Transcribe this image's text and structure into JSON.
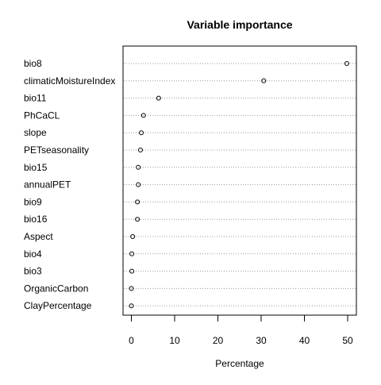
{
  "chart_data": {
    "type": "scatter",
    "title": "Variable importance",
    "xlabel": "Percentage",
    "ylabel": "",
    "xlim": [
      -2,
      52
    ],
    "xticks": [
      0,
      10,
      20,
      30,
      40,
      50
    ],
    "tick_labels": [
      "0",
      "10",
      "20",
      "30",
      "40",
      "50"
    ],
    "grid": "dotted horizontal lines per variable",
    "categories": [
      "bio8",
      "climaticMoistureIndex",
      "bio11",
      "PhCaCL",
      "slope",
      "PETseasonality",
      "bio15",
      "annualPET",
      "bio9",
      "bio16",
      "Aspect",
      "bio4",
      "bio3",
      "OrganicCarbon",
      "ClayPercentage"
    ],
    "values": [
      49.8,
      30.6,
      6.3,
      2.8,
      2.3,
      2.1,
      1.6,
      1.6,
      1.4,
      1.4,
      0.3,
      0.1,
      0.1,
      0.0,
      0.0
    ]
  }
}
